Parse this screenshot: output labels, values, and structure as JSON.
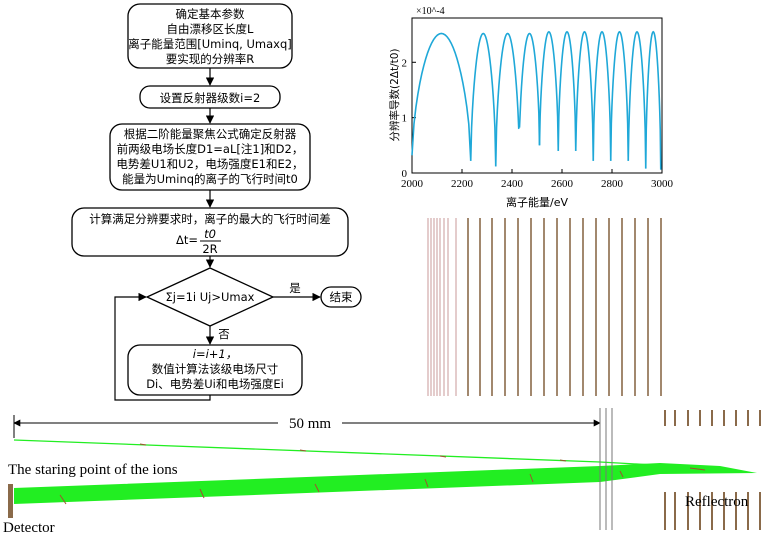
{
  "flowchart": {
    "box1": {
      "lines": [
        "确定基本参数",
        "自由漂移区长度L",
        "离子能量范围[Uminq, Umaxq]",
        "要实现的分辨率R"
      ]
    },
    "box2": "设置反射器级数i=2",
    "box3": {
      "lines": [
        "根据二阶能量聚焦公式确定反射器",
        "前两级电场长度D1=aL[注1]和D2，",
        "电势差U1和U2，电场强度E1和E2，",
        "能量为Uminq的离子的飞行时间t0"
      ]
    },
    "box4": {
      "line1": "计算满足分辨要求时，离子的最大的飞行时间差",
      "delta_t": "Δt=",
      "numerator": "t0",
      "denominator": "2R"
    },
    "decision": "Σj=1i Uj>Umax",
    "yes_label": "是",
    "no_label": "否",
    "end_box": "结束",
    "box5": {
      "lines": [
        "i=i+1，",
        "数值计算法该级电场尺寸",
        "Di、电势差Ui和电场强度Ei"
      ]
    }
  },
  "chart_data": {
    "type": "line",
    "xlabel": "离子能量/eV",
    "ylabel": "分辨率导数(2Δt/t0)",
    "y_multiplier": "×10^-4",
    "xlim": [
      2000,
      3000
    ],
    "ylim": [
      0,
      2.8
    ],
    "xticks": [
      "2000",
      "2200",
      "2400",
      "2600",
      "2800",
      "3000"
    ],
    "yticks": [
      "0",
      "1",
      "2"
    ],
    "color": "#1fa8d8",
    "series": [
      {
        "segments": [
          {
            "x0": 2000,
            "x1": 2235,
            "peak": 2.52
          },
          {
            "x0": 2235,
            "x1": 2335,
            "peak": 2.52
          },
          {
            "x0": 2335,
            "x1": 2430,
            "peak": 2.52
          },
          {
            "x0": 2430,
            "x1": 2510,
            "peak": 2.52
          },
          {
            "x0": 2510,
            "x1": 2585,
            "peak": 2.55
          },
          {
            "x0": 2585,
            "x1": 2655,
            "peak": 2.55
          },
          {
            "x0": 2655,
            "x1": 2725,
            "peak": 2.55
          },
          {
            "x0": 2725,
            "x1": 2795,
            "peak": 2.55
          },
          {
            "x0": 2795,
            "x1": 2865,
            "peak": 2.55
          },
          {
            "x0": 2865,
            "x1": 2935,
            "peak": 2.55
          },
          {
            "x0": 2935,
            "x1": 2995,
            "peak": 2.55
          }
        ],
        "minima": [
          0.32,
          0.22,
          0.12,
          0.82,
          0.5,
          0.4,
          0.4,
          0.22,
          0.22,
          0.22,
          0.08,
          0.06
        ]
      }
    ]
  },
  "simulation": {
    "scale_label": "50 mm",
    "start_label": "The staring point of the ions",
    "detector_label": "Detector",
    "reflectron_label": "Reflectron",
    "beam_color": "#22ee22",
    "electrode_color": "#8a6a4a"
  }
}
